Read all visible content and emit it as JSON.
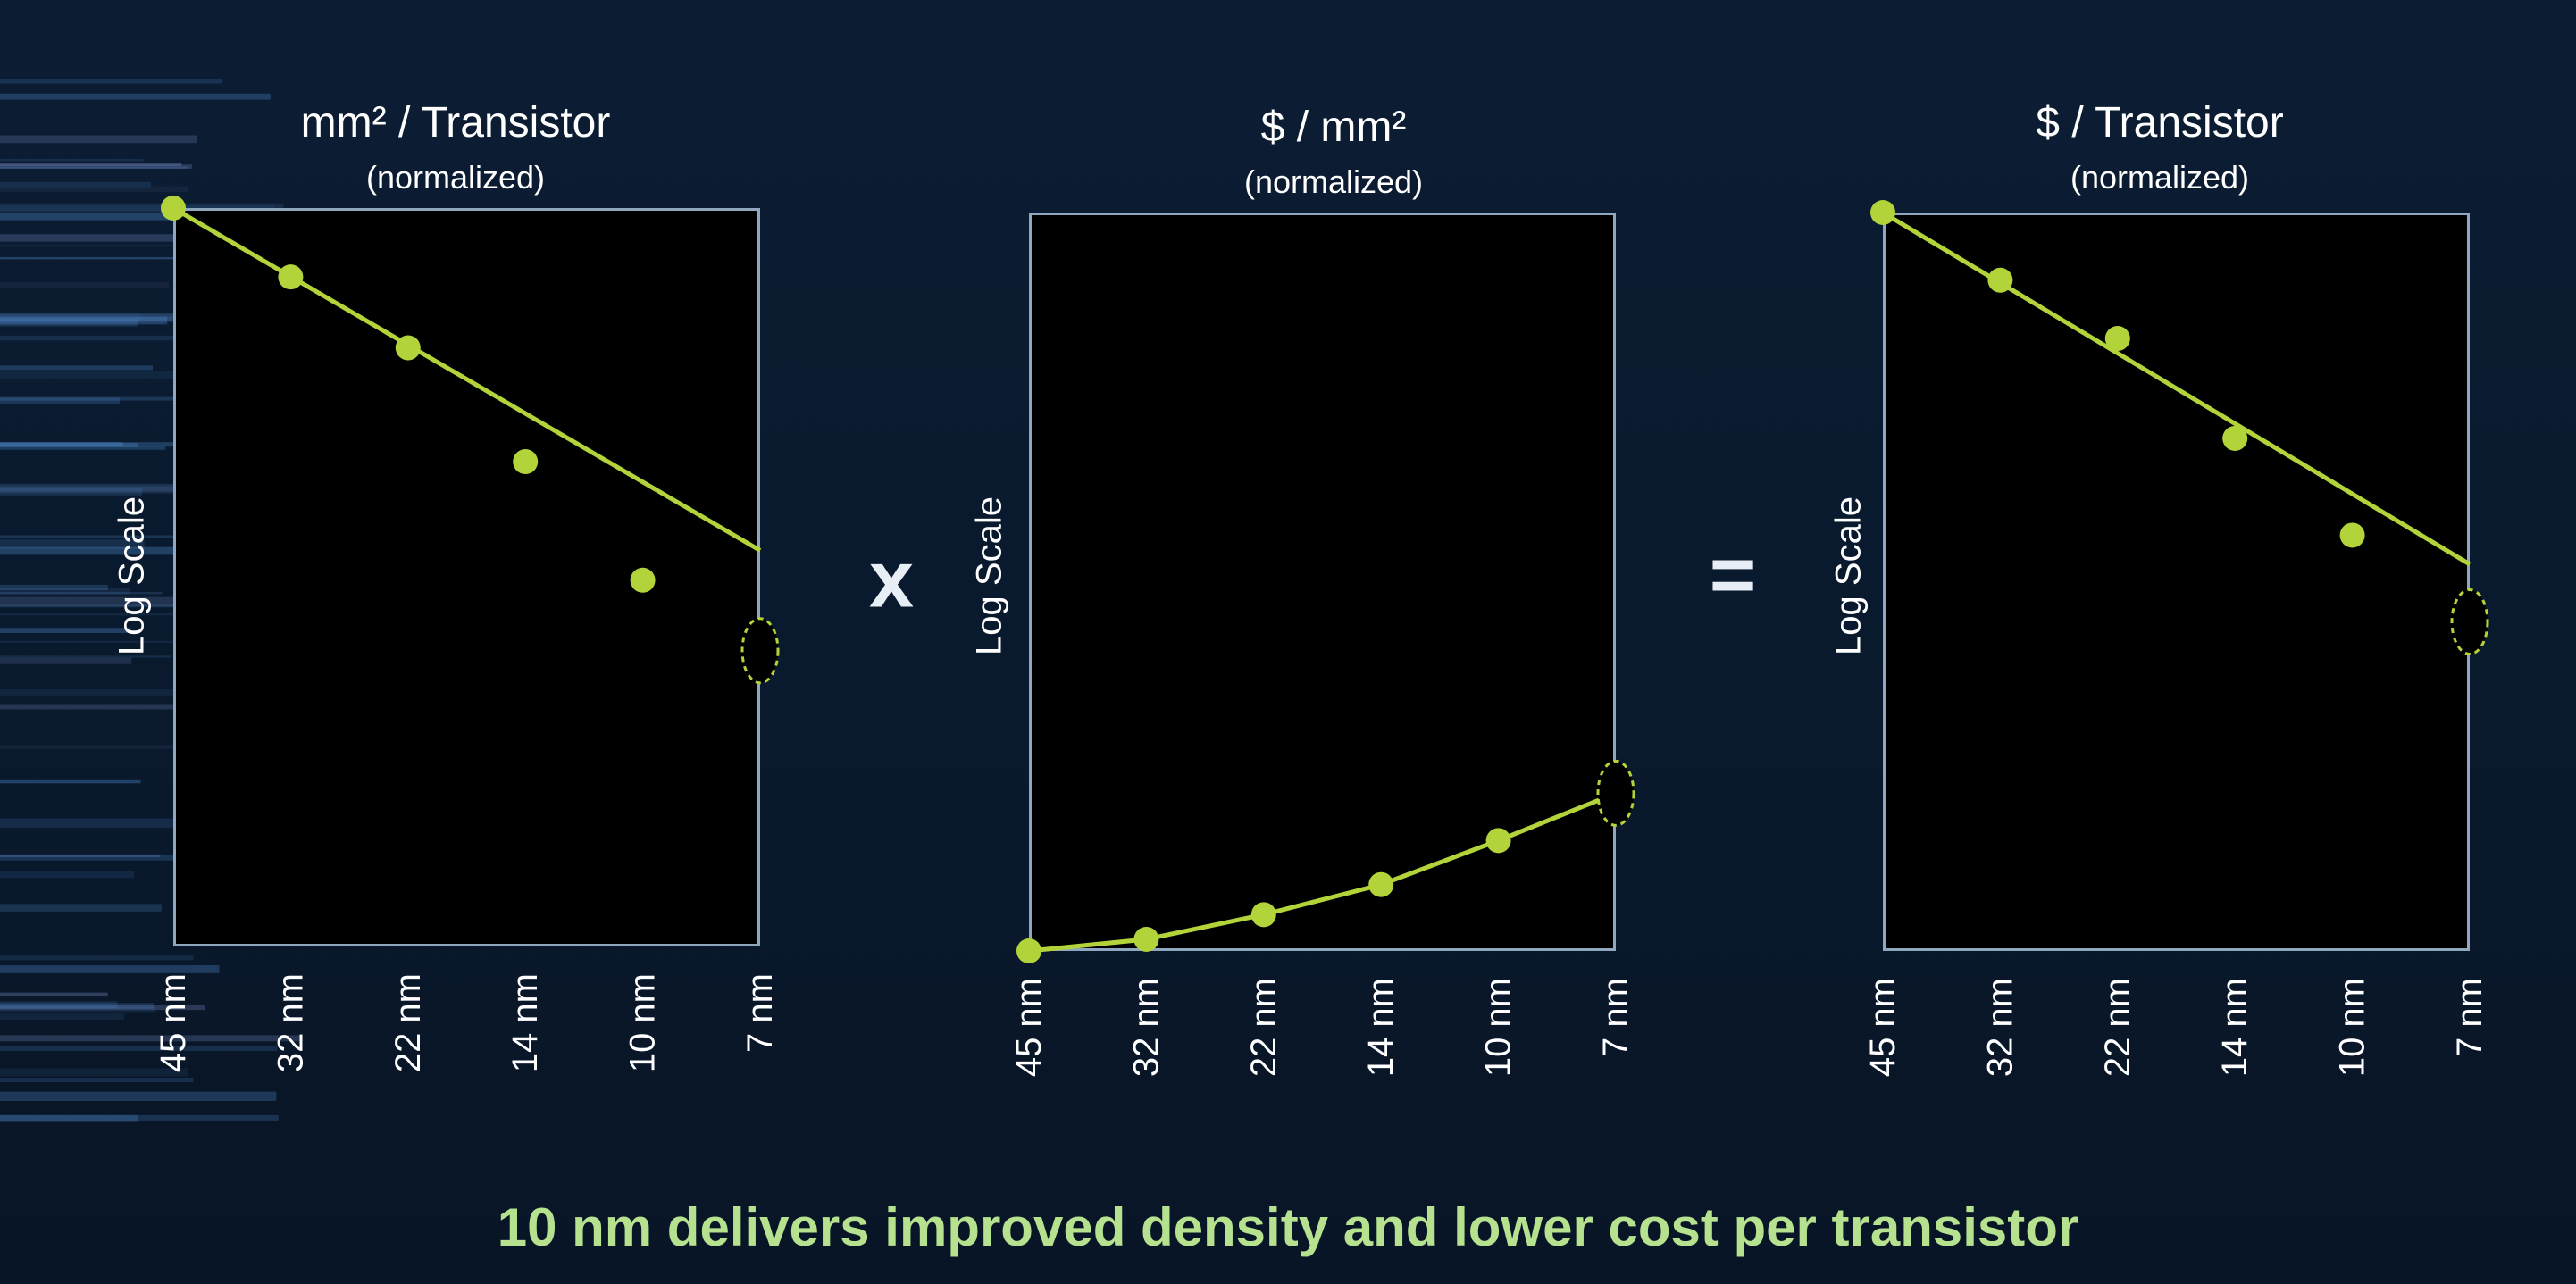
{
  "operators": {
    "times": "x",
    "equals": "="
  },
  "caption": "10 nm delivers improved density and lower cost per transistor",
  "colors": {
    "series": "#b3d33a",
    "frame": "#8fa7bf",
    "background": "#0a1a2e",
    "caption": "#b6e18e"
  },
  "chart_data": [
    {
      "type": "line",
      "title": "mm² / Transistor",
      "subtitle": "(normalized)",
      "ylabel": "Log Scale",
      "yscale": "log",
      "categories": [
        "45 nm",
        "32 nm",
        "22 nm",
        "14 nm",
        "10 nm",
        "7 nm"
      ],
      "points": [
        1.0,
        0.79,
        0.62,
        0.42,
        0.28
      ],
      "trend_line": {
        "from": [
          "45 nm",
          1.0
        ],
        "to": [
          "7 nm",
          0.31
        ]
      },
      "target_marker": {
        "category": "7 nm",
        "value": 0.22
      },
      "ylim": [
        0.08,
        1.0
      ]
    },
    {
      "type": "line",
      "title": "$ / mm²",
      "subtitle": "(normalized)",
      "ylabel": "Log Scale",
      "yscale": "log",
      "categories": [
        "45 nm",
        "32 nm",
        "22 nm",
        "14 nm",
        "10 nm",
        "7 nm"
      ],
      "points": [
        1.0,
        1.04,
        1.13,
        1.25,
        1.45,
        1.7
      ],
      "target_marker": {
        "category": "7 nm",
        "value": 1.7
      },
      "ylim": [
        1.0,
        12.0
      ]
    },
    {
      "type": "line",
      "title": "$ / Transistor",
      "subtitle": "(normalized)",
      "ylabel": "Log Scale",
      "yscale": "log",
      "categories": [
        "45 nm",
        "32 nm",
        "22 nm",
        "14 nm",
        "10 nm",
        "7 nm"
      ],
      "points": [
        1.0,
        0.76,
        0.6,
        0.4,
        0.27
      ],
      "trend_line": {
        "from": [
          "45 nm",
          1.0
        ],
        "to": [
          "7 nm",
          0.24
        ]
      },
      "target_marker": {
        "category": "7 nm",
        "value": 0.19
      },
      "ylim": [
        0.05,
        1.0
      ]
    }
  ]
}
